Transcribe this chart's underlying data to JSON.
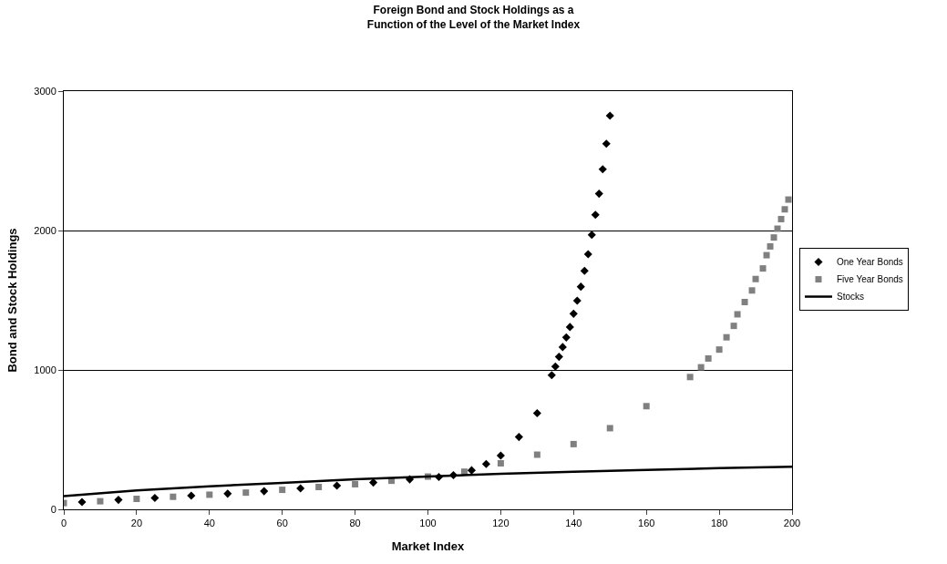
{
  "chart_data": {
    "type": "scatter",
    "title": "Foreign Bond and Stock Holdings as a\nFunction of the Level of the Market Index",
    "xlabel": "Market Index",
    "ylabel": "Bond and Stock Holdings",
    "xlim": [
      0,
      200
    ],
    "xticks": [
      0,
      20,
      40,
      60,
      80,
      100,
      120,
      140,
      160,
      180,
      200
    ],
    "ylim": [
      0,
      3000
    ],
    "yticks": [
      0,
      1000,
      2000,
      3000
    ],
    "grid": "y",
    "legend": "right",
    "series": [
      {
        "name": "One Year Bonds",
        "marker": "diamond",
        "color": "#000000",
        "x": [
          5,
          15,
          25,
          35,
          45,
          55,
          65,
          75,
          85,
          95,
          103,
          107,
          112,
          116,
          120,
          125,
          130,
          134,
          135,
          136,
          137,
          138,
          139,
          140,
          141,
          142,
          143,
          144,
          145,
          146,
          147,
          148,
          149,
          150
        ],
        "values": [
          52,
          68,
          82,
          98,
          112,
          130,
          150,
          170,
          192,
          215,
          232,
          245,
          280,
          325,
          386,
          519,
          690,
          962,
          1025,
          1094,
          1164,
          1233,
          1308,
          1403,
          1497,
          1597,
          1711,
          1830,
          1969,
          2113,
          2264,
          2440,
          2623,
          2824
        ]
      },
      {
        "name": "Five Year Bonds",
        "marker": "square",
        "color": "#808080",
        "x": [
          0,
          10,
          20,
          30,
          40,
          50,
          60,
          70,
          80,
          90,
          100,
          110,
          120,
          130,
          140,
          150,
          160,
          172,
          175,
          177,
          180,
          182,
          184,
          185,
          187,
          189,
          190,
          192,
          193,
          194,
          195,
          196,
          197,
          198,
          199
        ],
        "values": [
          45,
          58,
          75,
          90,
          105,
          120,
          140,
          160,
          180,
          205,
          235,
          270,
          330,
          392,
          468,
          582,
          740,
          949,
          1019,
          1082,
          1146,
          1234,
          1316,
          1399,
          1487,
          1570,
          1652,
          1728,
          1823,
          1886,
          1950,
          2013,
          2082,
          2152,
          2222
        ]
      },
      {
        "name": "Stocks",
        "type": "line",
        "marker": "none",
        "line_style": "solid",
        "color": "#000000",
        "x": [
          0,
          20,
          40,
          60,
          80,
          100,
          120,
          140,
          160,
          180,
          200
        ],
        "values": [
          95,
          135,
          165,
          190,
          215,
          235,
          255,
          270,
          283,
          295,
          305
        ]
      }
    ]
  }
}
